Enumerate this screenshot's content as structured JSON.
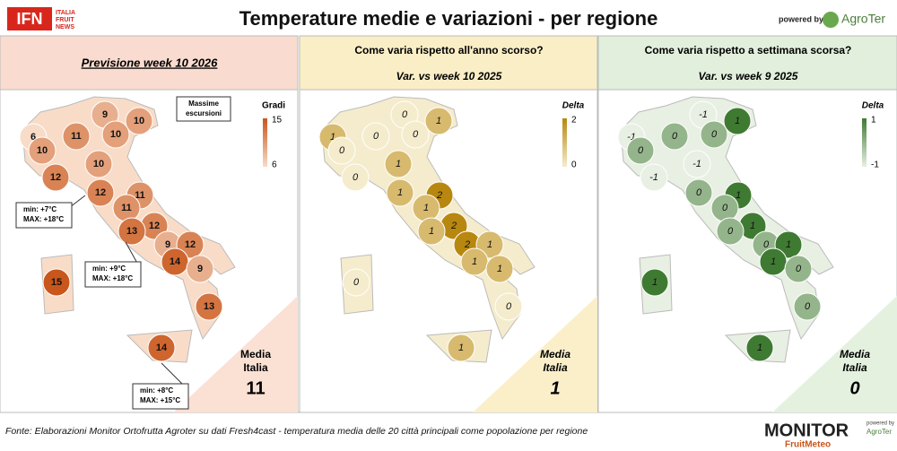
{
  "header": {
    "logo": "IFN",
    "logo_lines": [
      "ITALIA",
      "FRUIT",
      "NEWS"
    ],
    "title": "Temperature medie e variazioni - per regione",
    "powered_by": "powered by",
    "brand": "AgroTer"
  },
  "panels": [
    {
      "title": "Previsione week 10 2026",
      "legend_title": "Gradi",
      "scale": [
        6,
        15
      ],
      "colors": [
        "#f8dcc8",
        "#c9561b"
      ],
      "values": [
        9,
        10,
        10,
        6,
        11,
        10,
        10,
        12,
        12,
        11,
        11,
        12,
        13,
        9,
        12,
        14,
        9,
        13,
        14,
        15
      ],
      "note": [
        "Massime",
        "escursioni"
      ],
      "annotations": [
        [
          "min: +7°C",
          "MAX: +18°C"
        ],
        [
          "min: +9°C",
          "MAX: +18°C"
        ],
        [
          "min: +8°C",
          "MAX: +15°C"
        ]
      ],
      "average_label": [
        "Media",
        "Italia"
      ],
      "average": 11
    },
    {
      "title": "Come varia rispetto all'anno scorso?",
      "subtitle": "Var. vs week 10 2025",
      "legend_title": "Delta",
      "scale": [
        0,
        2
      ],
      "colors": [
        "#f5eccd",
        "#b8870f"
      ],
      "values": [
        0,
        1,
        0,
        1,
        0,
        0,
        1,
        0,
        1,
        2,
        1,
        2,
        1,
        2,
        1,
        1,
        1,
        0,
        1,
        0
      ],
      "average_label": [
        "Media",
        "Italia"
      ],
      "average": 1
    },
    {
      "title": "Come varia rispetto a settimana scorsa?",
      "subtitle": "Var. vs week 9 2025",
      "legend_title": "Delta",
      "scale": [
        -1,
        1
      ],
      "colors": [
        "#e8efe3",
        "#3f7a32"
      ],
      "values": [
        -1,
        1,
        0,
        -1,
        0,
        0,
        -1,
        -1,
        0,
        1,
        0,
        1,
        0,
        0,
        1,
        1,
        0,
        0,
        1,
        1
      ],
      "average_label": [
        "Media",
        "Italia"
      ],
      "average": 0
    }
  ],
  "footer": {
    "source": "Fonte: Elaborazioni Monitor Ortofrutta Agroter su dati Fresh4cast - temperatura media delle 20 città principali come popolazione per regione",
    "monitor": "MONITOR",
    "fruitmeteo": "FruitMeteo",
    "powered": "powered by",
    "brand": "AgroTer"
  }
}
